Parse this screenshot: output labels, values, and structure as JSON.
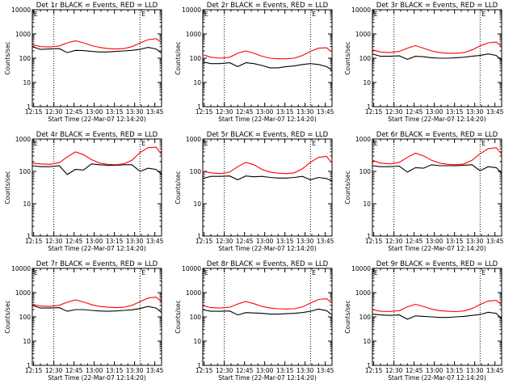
{
  "chart_data": [
    {
      "type": "line",
      "title": "Det 1r BLACK = Events, RED = LLD",
      "xlabel": "Start Time (22-Mar-07 12:14:20)",
      "ylabel": "Counts/sec",
      "yscale": "log",
      "ylim": [
        1,
        10000
      ],
      "x_ticks": [
        "12:15",
        "12:30",
        "12:45",
        "13:00",
        "13:15",
        "13:30",
        "13:45"
      ],
      "y_ticks": [
        "1",
        "10",
        "100",
        "1000",
        "10000"
      ],
      "grid": false,
      "vlines": [
        "12:30",
        "13:34"
      ],
      "corner_glyph": "E",
      "x": [
        "12:14",
        "12:20",
        "12:27",
        "12:34",
        "12:40",
        "12:46",
        "12:52",
        "12:58",
        "13:04",
        "13:10",
        "13:16",
        "13:22",
        "13:28",
        "13:34",
        "13:40",
        "13:46",
        "13:50"
      ],
      "series": [
        {
          "color": "#000000",
          "values": [
            300,
            230,
            240,
            250,
            170,
            210,
            205,
            190,
            180,
            180,
            190,
            200,
            210,
            230,
            280,
            240,
            160
          ]
        },
        {
          "color": "#ff0000",
          "values": [
            360,
            300,
            290,
            320,
            430,
            520,
            430,
            330,
            280,
            250,
            240,
            250,
            300,
            420,
            580,
            640,
            440
          ]
        }
      ]
    },
    {
      "type": "line",
      "title": "Det 2r BLACK = Events, RED = LLD",
      "xlabel": "Start Time (22-Mar-07 12:14:20)",
      "ylabel": "Counts/sec",
      "yscale": "log",
      "ylim": [
        1,
        10000
      ],
      "x_ticks": [
        "12:15",
        "12:30",
        "12:45",
        "13:00",
        "13:15",
        "13:30",
        "13:45"
      ],
      "y_ticks": [
        "1",
        "10",
        "100",
        "1000",
        "10000"
      ],
      "grid": false,
      "vlines": [
        "12:30",
        "13:34"
      ],
      "corner_glyph": "E",
      "x": [
        "12:14",
        "12:20",
        "12:27",
        "12:34",
        "12:40",
        "12:46",
        "12:52",
        "12:58",
        "13:04",
        "13:10",
        "13:16",
        "13:22",
        "13:28",
        "13:34",
        "13:40",
        "13:46",
        "13:50"
      ],
      "series": [
        {
          "color": "#000000",
          "values": [
            70,
            60,
            60,
            65,
            45,
            65,
            60,
            50,
            40,
            40,
            45,
            48,
            55,
            60,
            55,
            45,
            32
          ]
        },
        {
          "color": "#ff0000",
          "values": [
            140,
            110,
            100,
            110,
            160,
            200,
            160,
            120,
            100,
            95,
            95,
            100,
            130,
            190,
            260,
            270,
            180
          ]
        }
      ]
    },
    {
      "type": "line",
      "title": "Det 3r BLACK = Events, RED = LLD",
      "xlabel": "Start Time (22-Mar-07 12:14:20)",
      "ylabel": "Counts/sec",
      "yscale": "log",
      "ylim": [
        1,
        10000
      ],
      "x_ticks": [
        "12:15",
        "12:30",
        "12:45",
        "13:00",
        "13:15",
        "13:30",
        "13:45"
      ],
      "y_ticks": [
        "1",
        "10",
        "100",
        "1000",
        "10000"
      ],
      "grid": false,
      "vlines": [
        "12:30",
        "13:34"
      ],
      "corner_glyph": "E",
      "x": [
        "12:14",
        "12:20",
        "12:27",
        "12:34",
        "12:40",
        "12:46",
        "12:52",
        "12:58",
        "13:04",
        "13:10",
        "13:16",
        "13:22",
        "13:28",
        "13:34",
        "13:40",
        "13:46",
        "13:50"
      ],
      "series": [
        {
          "color": "#000000",
          "values": [
            150,
            120,
            120,
            125,
            90,
            120,
            115,
            105,
            100,
            100,
            105,
            110,
            120,
            130,
            150,
            130,
            80
          ]
        },
        {
          "color": "#ff0000",
          "values": [
            220,
            180,
            170,
            190,
            260,
            330,
            260,
            200,
            170,
            160,
            160,
            170,
            220,
            320,
            430,
            460,
            310
          ]
        }
      ]
    },
    {
      "type": "line",
      "title": "Det 4r BLACK = Events, RED = LLD",
      "xlabel": "Start Time (22-Mar-07 12:14:20)",
      "ylabel": "Counts/sec",
      "yscale": "log",
      "ylim": [
        1,
        1000
      ],
      "x_ticks": [
        "12:15",
        "12:30",
        "12:45",
        "13:00",
        "13:15",
        "13:30",
        "13:45"
      ],
      "y_ticks": [
        "1",
        "10",
        "100",
        "1000"
      ],
      "grid": false,
      "vlines": [
        "12:30",
        "13:34"
      ],
      "corner_glyph": "E",
      "x": [
        "12:14",
        "12:20",
        "12:27",
        "12:34",
        "12:40",
        "12:46",
        "12:52",
        "12:58",
        "13:04",
        "13:10",
        "13:16",
        "13:22",
        "13:28",
        "13:34",
        "13:40",
        "13:46",
        "13:50"
      ],
      "series": [
        {
          "color": "#000000",
          "values": [
            150,
            140,
            140,
            150,
            80,
            115,
            110,
            170,
            160,
            155,
            155,
            160,
            160,
            100,
            125,
            115,
            80
          ]
        },
        {
          "color": "#ff0000",
          "values": [
            180,
            170,
            165,
            185,
            280,
            400,
            330,
            230,
            180,
            165,
            160,
            170,
            220,
            380,
            540,
            560,
            330
          ]
        }
      ]
    },
    {
      "type": "line",
      "title": "Det 5r BLACK = Events, RED = LLD",
      "xlabel": "Start Time (22-Mar-07 12:14:20)",
      "ylabel": "Counts/sec",
      "yscale": "log",
      "ylim": [
        1,
        1000
      ],
      "x_ticks": [
        "12:15",
        "12:30",
        "12:45",
        "13:00",
        "13:15",
        "13:30",
        "13:45"
      ],
      "y_ticks": [
        "1",
        "10",
        "100",
        "1000"
      ],
      "grid": false,
      "vlines": [
        "12:30",
        "13:34"
      ],
      "corner_glyph": "E",
      "x": [
        "12:14",
        "12:20",
        "12:27",
        "12:34",
        "12:40",
        "12:46",
        "12:52",
        "12:58",
        "13:04",
        "13:10",
        "13:16",
        "13:22",
        "13:28",
        "13:34",
        "13:40",
        "13:46",
        "13:50"
      ],
      "series": [
        {
          "color": "#000000",
          "values": [
            60,
            70,
            70,
            72,
            55,
            72,
            68,
            70,
            65,
            62,
            62,
            65,
            70,
            55,
            65,
            60,
            50
          ]
        },
        {
          "color": "#ff0000",
          "values": [
            100,
            90,
            85,
            95,
            140,
            190,
            160,
            115,
            95,
            88,
            85,
            90,
            120,
            190,
            270,
            290,
            180
          ]
        }
      ]
    },
    {
      "type": "line",
      "title": "Det 6r BLACK = Events, RED = LLD",
      "xlabel": "Start Time (22-Mar-07 12:14:20)",
      "ylabel": "Counts/sec",
      "yscale": "log",
      "ylim": [
        1,
        1000
      ],
      "x_ticks": [
        "12:15",
        "12:30",
        "12:45",
        "13:00",
        "13:15",
        "13:30",
        "13:45"
      ],
      "y_ticks": [
        "1",
        "10",
        "100",
        "1000"
      ],
      "grid": false,
      "vlines": [
        "12:30",
        "13:34"
      ],
      "corner_glyph": "E",
      "x": [
        "12:14",
        "12:20",
        "12:27",
        "12:34",
        "12:40",
        "12:46",
        "12:52",
        "12:58",
        "13:04",
        "13:10",
        "13:16",
        "13:22",
        "13:28",
        "13:34",
        "13:40",
        "13:46",
        "13:50"
      ],
      "series": [
        {
          "color": "#000000",
          "values": [
            150,
            140,
            140,
            145,
            95,
            130,
            125,
            160,
            150,
            150,
            150,
            155,
            160,
            105,
            140,
            130,
            90
          ]
        },
        {
          "color": "#ff0000",
          "values": [
            220,
            180,
            170,
            190,
            270,
            370,
            300,
            220,
            180,
            165,
            160,
            170,
            220,
            350,
            500,
            540,
            340
          ]
        }
      ]
    },
    {
      "type": "line",
      "title": "Det 7r BLACK = Events, RED = LLD",
      "xlabel": "Start Time (22-Mar-07 12:14:20)",
      "ylabel": "Counts/sec",
      "yscale": "log",
      "ylim": [
        1,
        10000
      ],
      "x_ticks": [
        "12:15",
        "12:30",
        "12:45",
        "13:00",
        "13:15",
        "13:30",
        "13:45"
      ],
      "y_ticks": [
        "1",
        "10",
        "100",
        "1000",
        "10000"
      ],
      "grid": false,
      "vlines": [
        "12:30",
        "13:34"
      ],
      "corner_glyph": "E",
      "x": [
        "12:14",
        "12:20",
        "12:27",
        "12:34",
        "12:40",
        "12:46",
        "12:52",
        "12:58",
        "13:04",
        "13:10",
        "13:16",
        "13:22",
        "13:28",
        "13:34",
        "13:40",
        "13:46",
        "13:50"
      ],
      "series": [
        {
          "color": "#000000",
          "values": [
            300,
            230,
            230,
            240,
            170,
            200,
            200,
            185,
            175,
            170,
            175,
            185,
            195,
            220,
            270,
            230,
            150
          ]
        },
        {
          "color": "#ff0000",
          "values": [
            330,
            280,
            270,
            300,
            400,
            500,
            410,
            320,
            270,
            250,
            240,
            250,
            300,
            420,
            600,
            650,
            420
          ]
        }
      ]
    },
    {
      "type": "line",
      "title": "Det 8r BLACK = Events, RED = LLD",
      "xlabel": "Start Time (22-Mar-07 12:14:20)",
      "ylabel": "Counts/sec",
      "yscale": "log",
      "ylim": [
        1,
        10000
      ],
      "x_ticks": [
        "12:15",
        "12:30",
        "12:45",
        "13:00",
        "13:15",
        "13:30",
        "13:45"
      ],
      "y_ticks": [
        "1",
        "10",
        "100",
        "1000",
        "10000"
      ],
      "grid": false,
      "vlines": [
        "12:30",
        "13:34"
      ],
      "corner_glyph": "E",
      "x": [
        "12:14",
        "12:20",
        "12:27",
        "12:34",
        "12:40",
        "12:46",
        "12:52",
        "12:58",
        "13:04",
        "13:10",
        "13:16",
        "13:22",
        "13:28",
        "13:34",
        "13:40",
        "13:46",
        "13:50"
      ],
      "series": [
        {
          "color": "#000000",
          "values": [
            200,
            170,
            170,
            175,
            120,
            150,
            145,
            140,
            130,
            130,
            135,
            140,
            150,
            170,
            210,
            180,
            120
          ]
        },
        {
          "color": "#ff0000",
          "values": [
            290,
            240,
            230,
            250,
            340,
            430,
            350,
            270,
            230,
            215,
            210,
            215,
            260,
            370,
            520,
            560,
            370
          ]
        }
      ]
    },
    {
      "type": "line",
      "title": "Det 9r BLACK = Events, RED = LLD",
      "xlabel": "Start Time (22-Mar-07 12:14:20)",
      "ylabel": "Counts/sec",
      "yscale": "log",
      "ylim": [
        1,
        10000
      ],
      "x_ticks": [
        "12:15",
        "12:30",
        "12:45",
        "13:00",
        "13:15",
        "13:30",
        "13:45"
      ],
      "y_ticks": [
        "1",
        "10",
        "100",
        "1000",
        "10000"
      ],
      "grid": false,
      "vlines": [
        "12:30",
        "13:34"
      ],
      "corner_glyph": "E",
      "x": [
        "12:14",
        "12:20",
        "12:27",
        "12:34",
        "12:40",
        "12:46",
        "12:52",
        "12:58",
        "13:04",
        "13:10",
        "13:16",
        "13:22",
        "13:28",
        "13:34",
        "13:40",
        "13:46",
        "13:50"
      ],
      "series": [
        {
          "color": "#000000",
          "values": [
            130,
            120,
            115,
            120,
            80,
            110,
            105,
            100,
            95,
            95,
            100,
            105,
            115,
            125,
            155,
            140,
            85
          ]
        },
        {
          "color": "#ff0000",
          "values": [
            200,
            170,
            165,
            180,
            260,
            330,
            270,
            210,
            180,
            170,
            165,
            175,
            220,
            320,
            450,
            480,
            320
          ]
        }
      ]
    }
  ]
}
